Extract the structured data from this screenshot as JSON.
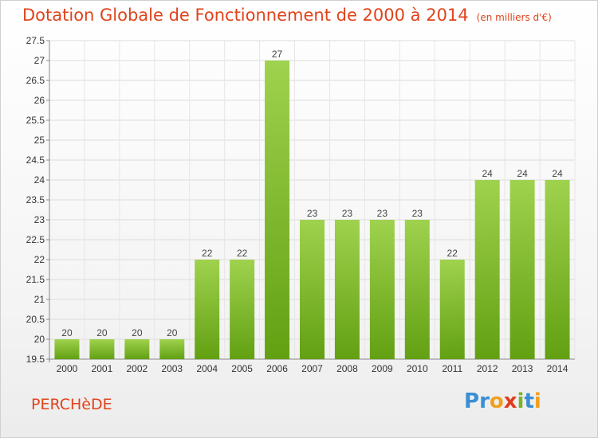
{
  "title": "Dotation Globale de Fonctionnement de 2000 à 2014",
  "subtitle": "(en milliers d'€)",
  "commune": "PERCHèDE",
  "logo": {
    "letters": [
      "P",
      "r",
      "o",
      "x",
      "i",
      "t",
      "i"
    ],
    "colors": [
      "#3a8fd4",
      "#3a8fd4",
      "#f0a020",
      "#e03c1c",
      "#79b52a",
      "#3a8fd4",
      "#f0a020"
    ]
  },
  "colors": {
    "bar_top": "#9fd24e",
    "bar_bottom": "#62a012",
    "title": "#e0431a"
  },
  "chart_data": {
    "type": "bar",
    "categories": [
      "2000",
      "2001",
      "2002",
      "2003",
      "2004",
      "2005",
      "2006",
      "2007",
      "2008",
      "2009",
      "2010",
      "2011",
      "2012",
      "2013",
      "2014"
    ],
    "values": [
      20,
      20,
      20,
      20,
      22,
      22,
      27,
      23,
      23,
      23,
      23,
      22,
      24,
      24,
      24
    ],
    "ylim": [
      19.5,
      27.5
    ],
    "yticks": [
      "19.5",
      "20",
      "20.5",
      "21",
      "21.5",
      "22",
      "22.5",
      "23",
      "23.5",
      "24",
      "24.5",
      "25",
      "25.5",
      "26",
      "26.5",
      "27",
      "27.5"
    ],
    "grid": true
  }
}
